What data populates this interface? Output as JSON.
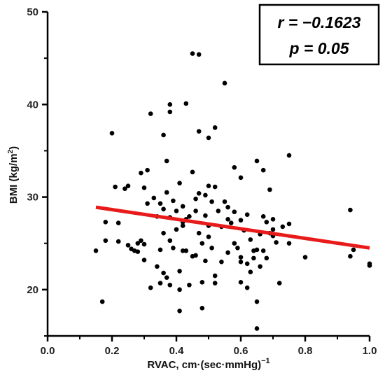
{
  "chart_data": {
    "type": "scatter",
    "title": "",
    "xlabel": "RVAC, cm·(sec·mmHg)",
    "xlabel_superscript": "−1",
    "ylabel": "BMI (kg/m",
    "ylabel_superscript": "2",
    "ylabel_suffix": ")",
    "xlim": [
      0.0,
      1.0
    ],
    "ylim": [
      15,
      50
    ],
    "xticks": [
      0.0,
      0.2,
      0.4,
      0.6,
      0.8,
      1.0
    ],
    "xtick_labels": [
      "0.0",
      "0.2",
      "0.4",
      "0.6",
      "0.8",
      "1.0"
    ],
    "yticks": [
      20,
      30,
      40,
      50
    ],
    "ytick_labels": [
      "20",
      "30",
      "40",
      "50"
    ],
    "grid": false,
    "point_color": "#000000",
    "regression_color": "#e81a1a",
    "regression_line": {
      "x": [
        0.15,
        1.0
      ],
      "y": [
        28.9,
        24.5
      ]
    },
    "annotation": {
      "r_text": "r = −0.1623",
      "p_text": "p = 0.05",
      "placement": "top-right"
    },
    "points": [
      [
        0.15,
        24.2
      ],
      [
        0.17,
        18.7
      ],
      [
        0.18,
        27.3
      ],
      [
        0.18,
        25.3
      ],
      [
        0.2,
        36.9
      ],
      [
        0.21,
        31.1
      ],
      [
        0.22,
        27.2
      ],
      [
        0.22,
        25.2
      ],
      [
        0.24,
        30.9
      ],
      [
        0.25,
        31.2
      ],
      [
        0.25,
        24.8
      ],
      [
        0.26,
        24.4
      ],
      [
        0.27,
        24.2
      ],
      [
        0.28,
        24.1
      ],
      [
        0.28,
        25.0
      ],
      [
        0.29,
        25.3
      ],
      [
        0.29,
        32.6
      ],
      [
        0.3,
        31.0
      ],
      [
        0.3,
        24.9
      ],
      [
        0.3,
        23.2
      ],
      [
        0.31,
        32.9
      ],
      [
        0.31,
        29.3
      ],
      [
        0.32,
        39.0
      ],
      [
        0.32,
        20.2
      ],
      [
        0.33,
        29.9
      ],
      [
        0.34,
        27.9
      ],
      [
        0.34,
        22.5
      ],
      [
        0.35,
        29.3
      ],
      [
        0.35,
        24.3
      ],
      [
        0.35,
        20.7
      ],
      [
        0.36,
        36.7
      ],
      [
        0.36,
        28.7
      ],
      [
        0.36,
        26.1
      ],
      [
        0.36,
        21.8
      ],
      [
        0.37,
        33.9
      ],
      [
        0.37,
        30.5
      ],
      [
        0.37,
        21.3
      ],
      [
        0.38,
        40.0
      ],
      [
        0.38,
        39.2
      ],
      [
        0.38,
        27.8
      ],
      [
        0.38,
        25.3
      ],
      [
        0.38,
        20.5
      ],
      [
        0.39,
        29.6
      ],
      [
        0.39,
        24.5
      ],
      [
        0.4,
        28.5
      ],
      [
        0.4,
        26.5
      ],
      [
        0.41,
        31.5
      ],
      [
        0.41,
        22.0
      ],
      [
        0.41,
        20.0
      ],
      [
        0.41,
        17.7
      ],
      [
        0.42,
        29.0
      ],
      [
        0.42,
        27.3
      ],
      [
        0.42,
        26.9
      ],
      [
        0.42,
        24.2
      ],
      [
        0.43,
        40.1
      ],
      [
        0.43,
        27.6
      ],
      [
        0.43,
        24.2
      ],
      [
        0.44,
        27.9
      ],
      [
        0.44,
        20.5
      ],
      [
        0.45,
        45.5
      ],
      [
        0.45,
        32.7
      ],
      [
        0.45,
        23.6
      ],
      [
        0.46,
        29.8
      ],
      [
        0.46,
        28.5
      ],
      [
        0.46,
        23.7
      ],
      [
        0.47,
        45.4
      ],
      [
        0.47,
        37.1
      ],
      [
        0.47,
        30.4
      ],
      [
        0.47,
        26.1
      ],
      [
        0.48,
        25.0
      ],
      [
        0.48,
        20.8
      ],
      [
        0.48,
        18.0
      ],
      [
        0.49,
        30.2
      ],
      [
        0.49,
        28.0
      ],
      [
        0.49,
        23.1
      ],
      [
        0.5,
        36.4
      ],
      [
        0.5,
        31.2
      ],
      [
        0.5,
        26.9
      ],
      [
        0.5,
        25.7
      ],
      [
        0.51,
        29.5
      ],
      [
        0.51,
        24.5
      ],
      [
        0.52,
        37.5
      ],
      [
        0.52,
        31.1
      ],
      [
        0.52,
        21.5
      ],
      [
        0.52,
        20.7
      ],
      [
        0.53,
        28.5
      ],
      [
        0.54,
        26.8
      ],
      [
        0.54,
        23.0
      ],
      [
        0.55,
        42.3
      ],
      [
        0.55,
        29.5
      ],
      [
        0.56,
        28.9
      ],
      [
        0.56,
        27.6
      ],
      [
        0.56,
        24.0
      ],
      [
        0.57,
        27.2
      ],
      [
        0.58,
        33.2
      ],
      [
        0.58,
        28.4
      ],
      [
        0.58,
        25.0
      ],
      [
        0.59,
        24.5
      ],
      [
        0.6,
        32.1
      ],
      [
        0.6,
        27.5
      ],
      [
        0.6,
        23.5
      ],
      [
        0.6,
        23.0
      ],
      [
        0.6,
        20.8
      ],
      [
        0.61,
        26.4
      ],
      [
        0.62,
        28.1
      ],
      [
        0.62,
        22.8
      ],
      [
        0.62,
        20.2
      ],
      [
        0.63,
        25.4
      ],
      [
        0.63,
        21.9
      ],
      [
        0.64,
        24.2
      ],
      [
        0.64,
        23.4
      ],
      [
        0.65,
        33.9
      ],
      [
        0.65,
        24.3
      ],
      [
        0.65,
        18.7
      ],
      [
        0.65,
        15.8
      ],
      [
        0.66,
        26.0
      ],
      [
        0.66,
        22.5
      ],
      [
        0.67,
        32.9
      ],
      [
        0.67,
        27.9
      ],
      [
        0.67,
        24.2
      ],
      [
        0.68,
        27.3
      ],
      [
        0.68,
        23.4
      ],
      [
        0.69,
        30.8
      ],
      [
        0.69,
        26.1
      ],
      [
        0.7,
        27.6
      ],
      [
        0.7,
        26.5
      ],
      [
        0.7,
        25.8
      ],
      [
        0.71,
        25.1
      ],
      [
        0.72,
        20.7
      ],
      [
        0.73,
        26.8
      ],
      [
        0.75,
        34.5
      ],
      [
        0.75,
        27.1
      ],
      [
        0.75,
        25.0
      ],
      [
        0.8,
        23.5
      ],
      [
        0.94,
        28.6
      ],
      [
        0.94,
        23.6
      ],
      [
        0.95,
        24.3
      ],
      [
        1.0,
        22.6
      ],
      [
        1.0,
        22.8
      ]
    ]
  }
}
